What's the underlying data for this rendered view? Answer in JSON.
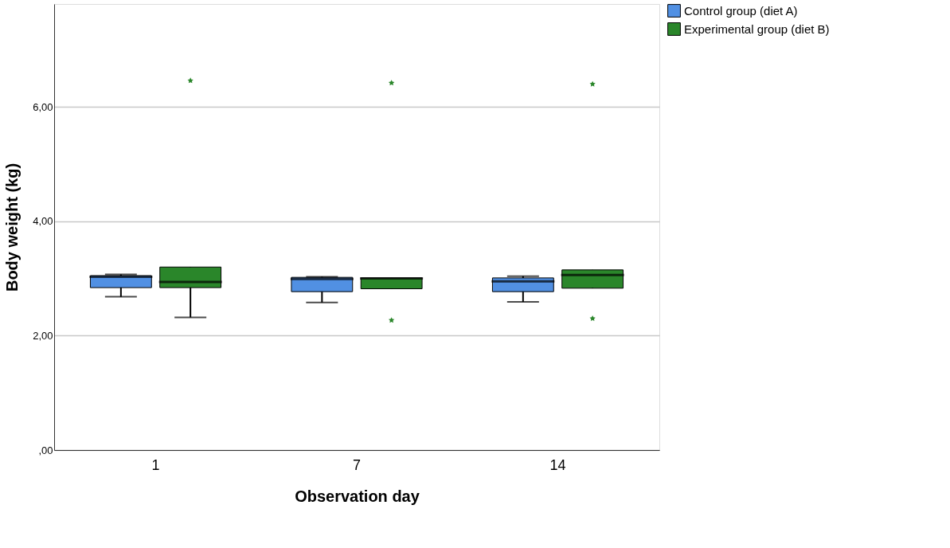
{
  "chart_data": {
    "type": "box",
    "xlabel": "Observation day",
    "ylabel": "Body weight (kg)",
    "categories": [
      "1",
      "7",
      "14"
    ],
    "series": [
      {
        "name": "Control group (diet A)",
        "color": "#5190e3",
        "boxes": [
          {
            "low": 2.68,
            "q1": 2.84,
            "median": 3.03,
            "q3": 3.05,
            "high": 3.07
          },
          {
            "low": 2.58,
            "q1": 2.77,
            "median": 2.99,
            "q3": 3.02,
            "high": 3.03
          },
          {
            "low": 2.59,
            "q1": 2.77,
            "median": 2.95,
            "q3": 3.01,
            "high": 3.04
          }
        ]
      },
      {
        "name": "Experimental group (diet B)",
        "color": "#2a862a",
        "boxes": [
          {
            "low": 2.32,
            "q1": 2.84,
            "median": 2.94,
            "q3": 3.2,
            "high": 3.2,
            "outliers": [
              6.46
            ]
          },
          {
            "low": 2.82,
            "q1": 2.82,
            "median": 3.0,
            "q3": 3.01,
            "high": 3.01,
            "outliers": [
              6.42,
              2.27
            ]
          },
          {
            "low": 2.83,
            "q1": 2.83,
            "median": 3.06,
            "q3": 3.15,
            "high": 3.15,
            "outliers": [
              6.4,
              2.3
            ]
          }
        ]
      }
    ],
    "ylim": [
      0,
      7.8
    ],
    "yticks": [
      {
        "value": 0,
        "label": ",00"
      },
      {
        "value": 2,
        "label": "2,00"
      },
      {
        "value": 4,
        "label": "4,00"
      },
      {
        "value": 6,
        "label": "6,00"
      }
    ],
    "grid": "y",
    "legend": "top right",
    "marker": "star"
  }
}
